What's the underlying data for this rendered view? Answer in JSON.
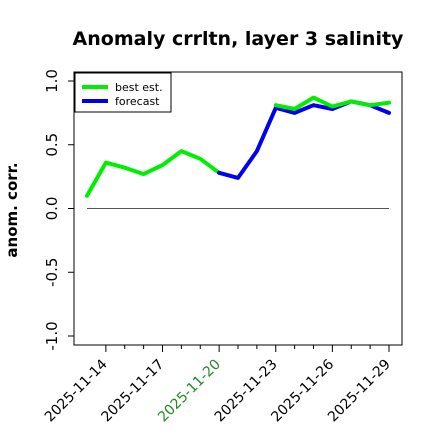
{
  "chart_data": {
    "type": "line",
    "title": "Anomaly crrltn, layer 3 salinity",
    "ylabel": "anom. corr.",
    "xlabel": "",
    "ylim": [
      -1.0,
      1.0
    ],
    "yticks": [
      "-1.0",
      "-0.5",
      "0.0",
      "0.5",
      "1.0"
    ],
    "ytick_values": [
      -1.0,
      -0.5,
      0.0,
      0.5,
      1.0
    ],
    "x_start": "2025-11-13",
    "x_end": "2025-11-29",
    "xticks": [
      {
        "label": "2025-11-14",
        "color": "#000000"
      },
      {
        "label": "2025-11-17",
        "color": "#000000"
      },
      {
        "label": "2025-11-20",
        "color": "#228B22"
      },
      {
        "label": "2025-11-23",
        "color": "#000000"
      },
      {
        "label": "2025-11-26",
        "color": "#000000"
      },
      {
        "label": "2025-11-29",
        "color": "#000000"
      }
    ],
    "reference_line": 0.0,
    "legend_position": "top-left",
    "series": [
      {
        "name": "best est.",
        "color": "#00ee00",
        "x": [
          "2025-11-13",
          "2025-11-14",
          "2025-11-15",
          "2025-11-16",
          "2025-11-17",
          "2025-11-18",
          "2025-11-19",
          "2025-11-20"
        ],
        "y": [
          0.1,
          0.36,
          0.32,
          0.27,
          0.34,
          0.45,
          0.39,
          0.28
        ]
      },
      {
        "name": "forecast",
        "color": "#0000ee",
        "x": [
          "2025-11-20",
          "2025-11-21",
          "2025-11-22",
          "2025-11-23",
          "2025-11-24",
          "2025-11-25",
          "2025-11-26",
          "2025-11-27",
          "2025-11-28",
          "2025-11-29"
        ],
        "y": [
          0.28,
          0.24,
          0.45,
          0.79,
          0.75,
          0.81,
          0.78,
          0.84,
          0.81,
          0.75
        ]
      },
      {
        "name": "",
        "color": "#00ee00",
        "x": [
          "2025-11-23",
          "2025-11-24",
          "2025-11-25",
          "2025-11-26",
          "2025-11-27",
          "2025-11-28",
          "2025-11-29"
        ],
        "y": [
          0.81,
          0.78,
          0.87,
          0.8,
          0.84,
          0.81,
          0.83
        ]
      }
    ]
  }
}
